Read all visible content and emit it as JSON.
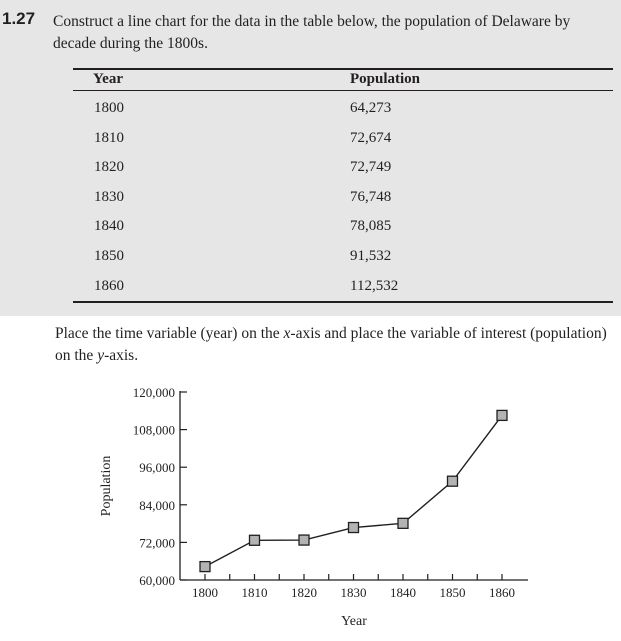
{
  "problem": {
    "number": "1.27",
    "text": "Construct a line chart for the data in the table below, the population of Delaware by decade during the 1800s."
  },
  "table": {
    "headers": [
      "Year",
      "Population"
    ],
    "rows": [
      [
        "1800",
        "64,273"
      ],
      [
        "1810",
        "72,674"
      ],
      [
        "1820",
        "72,749"
      ],
      [
        "1830",
        "76,748"
      ],
      [
        "1840",
        "78,085"
      ],
      [
        "1850",
        "91,532"
      ],
      [
        "1860",
        "112,532"
      ]
    ]
  },
  "instruction": {
    "part1": "Place the time variable (year) on the ",
    "xvar": "x",
    "part2": "-axis and place the variable of interest (population) on the ",
    "yvar": "y",
    "part3": "-axis."
  },
  "colors": {
    "panel": "#e6e6e6",
    "marker_fill": "#b3b3b3",
    "ink": "#231f20"
  },
  "chart_data": {
    "type": "line",
    "x": [
      1800,
      1810,
      1820,
      1830,
      1840,
      1850,
      1860
    ],
    "y": [
      64273,
      72674,
      72749,
      76748,
      78085,
      91532,
      112532
    ],
    "x_tick_labels": [
      "1800",
      "1810",
      "1820",
      "1830",
      "1840",
      "1850",
      "1860"
    ],
    "y_ticks": [
      60000,
      72000,
      84000,
      96000,
      108000,
      120000
    ],
    "y_tick_labels": [
      "60,000",
      "72,000",
      "84,000",
      "96,000",
      "108,000",
      "120,000"
    ],
    "xlabel": "Year",
    "ylabel": "Population",
    "ylim": [
      60000,
      120000
    ],
    "marker": "square",
    "grid": false
  }
}
